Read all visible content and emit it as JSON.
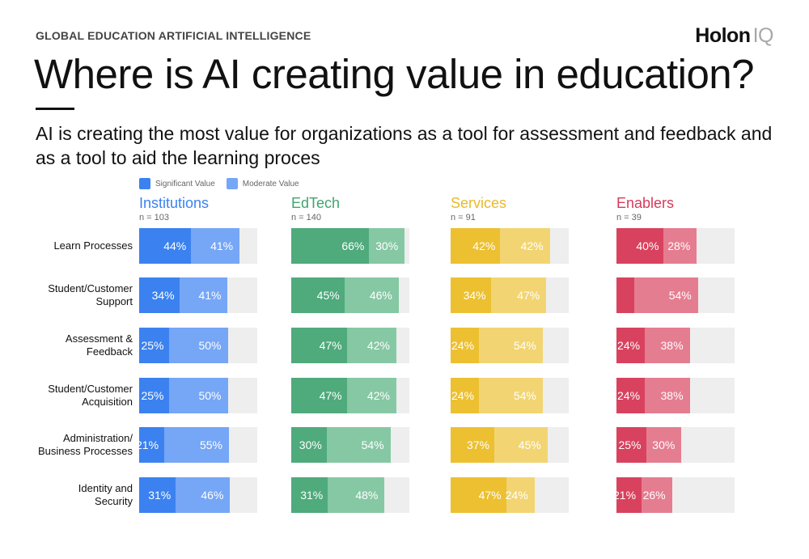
{
  "header": {
    "kicker": "GLOBAL EDUCATION ARTIFICIAL INTELLIGENCE",
    "logo_main": "Holon",
    "logo_accent": "IQ",
    "title": "Where is AI creating value in education?",
    "subtitle": "AI is creating the most value for organizations as a tool for assessment and feedback and as a tool to aid the learning proces"
  },
  "chart_data": {
    "type": "bar",
    "stacked": true,
    "orientation": "horizontal",
    "legend": {
      "placement": "top-left",
      "items": [
        {
          "label": "Significant Value",
          "color": "#3b82f0"
        },
        {
          "label": "Moderate Value",
          "color": "#76a6f6"
        }
      ]
    },
    "categories": [
      "Learn Processes",
      "Student/Customer Support",
      "Assessment & Feedback",
      "Student/Customer Acquisition",
      "Administration/ Business Processes",
      "Identity and Security"
    ],
    "category_lines": [
      [
        "Learn Processes"
      ],
      [
        "Student/Customer",
        "Support"
      ],
      [
        "Assessment &",
        "Feedback"
      ],
      [
        "Student/Customer",
        "Acquisition"
      ],
      [
        "Administration/",
        "Business Processes"
      ],
      [
        "Identity and",
        "Security"
      ]
    ],
    "xlim": [
      0,
      100
    ],
    "groups": [
      {
        "name": "Institutions",
        "n_label": "n = 103",
        "color_significant": "#3b82f0",
        "color_moderate": "#76a6f6",
        "title_color": "#3b82f0",
        "significant": [
          44,
          34,
          25,
          25,
          21,
          31
        ],
        "moderate": [
          41,
          41,
          50,
          50,
          55,
          46
        ],
        "significant_labels": [
          "44%",
          "34%",
          "25%",
          "25%",
          "21%",
          "31%"
        ],
        "moderate_labels": [
          "41%",
          "41%",
          "50%",
          "50%",
          "55%",
          "46%"
        ]
      },
      {
        "name": "EdTech",
        "n_label": "n = 140",
        "color_significant": "#4faa7c",
        "color_moderate": "#86c8a4",
        "title_color": "#3fa46f",
        "significant": [
          66,
          45,
          47,
          47,
          30,
          31
        ],
        "moderate": [
          30,
          46,
          42,
          42,
          54,
          48
        ],
        "significant_labels": [
          "66%",
          "45%",
          "47%",
          "47%",
          "30%",
          "31%"
        ],
        "moderate_labels": [
          "30%",
          "46%",
          "42%",
          "42%",
          "54%",
          "48%"
        ]
      },
      {
        "name": "Services",
        "n_label": "n = 91",
        "color_significant": "#ecc031",
        "color_moderate": "#f2d572",
        "title_color": "#e9b92a",
        "significant": [
          42,
          34,
          24,
          24,
          37,
          47
        ],
        "moderate": [
          42,
          47,
          54,
          54,
          45,
          24
        ],
        "significant_labels": [
          "42%",
          "34%",
          "24%",
          "24%",
          "37%",
          "47%"
        ],
        "moderate_labels": [
          "42%",
          "47%",
          "54%",
          "54%",
          "45%",
          "24%"
        ]
      },
      {
        "name": "Enablers",
        "n_label": "n = 39",
        "color_significant": "#d8425f",
        "color_moderate": "#e57d91",
        "title_color": "#d63a59",
        "significant": [
          40,
          15,
          24,
          24,
          25,
          21
        ],
        "moderate": [
          28,
          54,
          38,
          38,
          30,
          26
        ],
        "significant_labels": [
          "40%",
          "",
          "24%",
          "24%",
          "25%",
          "21%"
        ],
        "moderate_labels": [
          "28%",
          "54%",
          "38%",
          "38%",
          "30%",
          "26%"
        ]
      }
    ]
  }
}
